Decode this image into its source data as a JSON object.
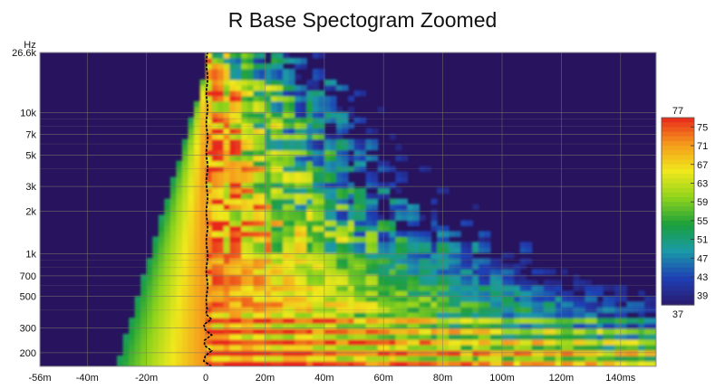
{
  "chart_data": {
    "type": "heatmap",
    "title": "R Base Spectogram Zoomed",
    "y_unit_label": "Hz",
    "x_ticks": [
      {
        "value": -56,
        "label": "-56m"
      },
      {
        "value": -40,
        "label": "-40m"
      },
      {
        "value": -20,
        "label": "-20m"
      },
      {
        "value": 0,
        "label": "0"
      },
      {
        "value": 20,
        "label": "20m"
      },
      {
        "value": 40,
        "label": "40m"
      },
      {
        "value": 60,
        "label": "60m"
      },
      {
        "value": 80,
        "label": "80m"
      },
      {
        "value": 100,
        "label": "100m"
      },
      {
        "value": 120,
        "label": "120m"
      },
      {
        "value": 140,
        "label": "140ms"
      }
    ],
    "y_ticks": [
      {
        "value": 26600,
        "label": "26.6k"
      },
      {
        "value": 10000,
        "label": "10k"
      },
      {
        "value": 7000,
        "label": "7k"
      },
      {
        "value": 5000,
        "label": "5k"
      },
      {
        "value": 3000,
        "label": "3k"
      },
      {
        "value": 2000,
        "label": "2k"
      },
      {
        "value": 1000,
        "label": "1k"
      },
      {
        "value": 700,
        "label": "700"
      },
      {
        "value": 500,
        "label": "500"
      },
      {
        "value": 300,
        "label": "300"
      },
      {
        "value": 200,
        "label": "200"
      }
    ],
    "xlim": [
      -56,
      152
    ],
    "ylim": [
      160,
      26600
    ],
    "y_scale": "log",
    "grid": true,
    "colorbar": {
      "min": 37,
      "max": 77,
      "ticks": [
        75,
        71,
        67,
        63,
        59,
        55,
        51,
        47,
        43,
        39
      ],
      "min_label": "37",
      "max_label": "77",
      "colors": [
        "#2a1a6e",
        "#1f3fb5",
        "#1a9aa8",
        "#1aa03c",
        "#8fd31c",
        "#f0e81c",
        "#f59a1c",
        "#e8281c"
      ]
    },
    "background_color": "#27135e",
    "impulse_trace_color": "#000000"
  }
}
